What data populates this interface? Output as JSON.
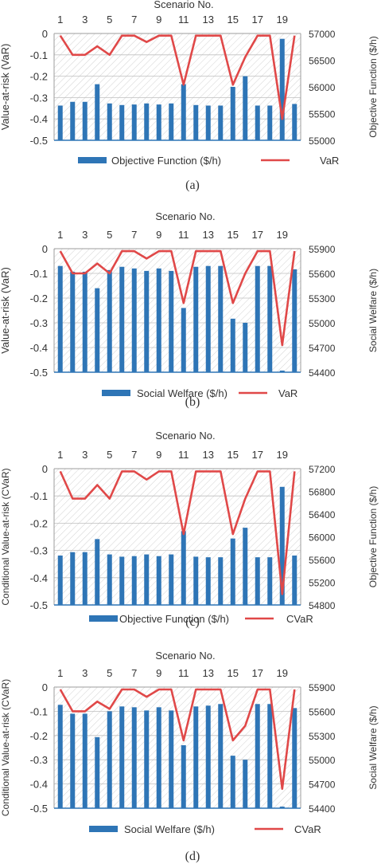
{
  "figure": {
    "captions": [
      "(a)",
      "(b)",
      "(c)",
      "(d)"
    ]
  },
  "chart_data": [
    {
      "type": "bar",
      "caption": "(a)",
      "xlabel": "Scenario No.",
      "x_tick_labels": [
        "1",
        "3",
        "5",
        "7",
        "9",
        "11",
        "13",
        "15",
        "17",
        "19"
      ],
      "categories": [
        "1",
        "2",
        "3",
        "4",
        "5",
        "6",
        "7",
        "8",
        "9",
        "10",
        "11",
        "12",
        "13",
        "14",
        "15",
        "16",
        "17",
        "18",
        "19",
        "20"
      ],
      "ylabel_left": "Value-at-risk (VaR)",
      "ylabel_right": "Objective Function ($/h)",
      "ylim_left": [
        -0.5,
        0
      ],
      "yticks_left": [
        "0",
        "-0.1",
        "-0.2",
        "-0.3",
        "-0.4",
        "-0.5"
      ],
      "ylim_right": [
        55000,
        57000
      ],
      "yticks_right": [
        "57000",
        "56500",
        "56000",
        "55500",
        "55000"
      ],
      "grid": true,
      "legend_position": "bottom",
      "series": [
        {
          "name": "Objective Function ($/h)",
          "kind": "bar",
          "axis": "right",
          "color": "#2e75b6",
          "values": [
            55650,
            55720,
            55720,
            56050,
            55690,
            55660,
            55670,
            55690,
            55670,
            55690,
            56050,
            55660,
            55650,
            55650,
            56000,
            56200,
            55650,
            55650,
            56900,
            55680
          ]
        },
        {
          "name": "VaR",
          "kind": "line",
          "axis": "left",
          "color": "#e04848",
          "values": [
            -0.01,
            -0.1,
            -0.1,
            -0.06,
            -0.1,
            -0.01,
            -0.01,
            -0.04,
            -0.01,
            -0.01,
            -0.24,
            -0.01,
            -0.01,
            -0.01,
            -0.24,
            -0.11,
            -0.01,
            -0.01,
            -0.4,
            -0.01
          ]
        }
      ]
    },
    {
      "type": "bar",
      "caption": "(b)",
      "xlabel": "Scenario No.",
      "x_tick_labels": [
        "1",
        "3",
        "5",
        "7",
        "9",
        "11",
        "13",
        "15",
        "17",
        "19"
      ],
      "categories": [
        "1",
        "2",
        "3",
        "4",
        "5",
        "6",
        "7",
        "8",
        "9",
        "10",
        "11",
        "12",
        "13",
        "14",
        "15",
        "16",
        "17",
        "18",
        "19",
        "20"
      ],
      "ylabel_left": "Value-at-risk (VaR)",
      "ylabel_right": "Social Welfare ($/h)",
      "ylim_left": [
        -0.5,
        0
      ],
      "yticks_left": [
        "0",
        "-0.1",
        "-0.2",
        "-0.3",
        "-0.4",
        "-0.5"
      ],
      "ylim_right": [
        54400,
        55900
      ],
      "yticks_right": [
        "55900",
        "55600",
        "55300",
        "55000",
        "54700",
        "54400"
      ],
      "grid": true,
      "legend_position": "bottom",
      "series": [
        {
          "name": "Social Welfare ($/h)",
          "kind": "bar",
          "axis": "right",
          "color": "#2e75b6",
          "values": [
            55690,
            55620,
            55620,
            55420,
            55640,
            55680,
            55660,
            55630,
            55660,
            55630,
            55180,
            55680,
            55690,
            55690,
            55050,
            55000,
            55690,
            55690,
            54420,
            55650
          ]
        },
        {
          "name": "VaR",
          "kind": "line",
          "axis": "left",
          "color": "#e04848",
          "values": [
            -0.01,
            -0.1,
            -0.1,
            -0.06,
            -0.1,
            -0.01,
            -0.01,
            -0.04,
            -0.01,
            -0.01,
            -0.22,
            -0.01,
            -0.01,
            -0.01,
            -0.22,
            -0.1,
            -0.01,
            -0.01,
            -0.39,
            -0.01
          ]
        }
      ]
    },
    {
      "type": "bar",
      "caption": "(c)",
      "xlabel": "Scenario No.",
      "x_tick_labels": [
        "1",
        "3",
        "5",
        "7",
        "9",
        "11",
        "13",
        "15",
        "17",
        "19"
      ],
      "categories": [
        "1",
        "2",
        "3",
        "4",
        "5",
        "6",
        "7",
        "8",
        "9",
        "10",
        "11",
        "12",
        "13",
        "14",
        "15",
        "16",
        "17",
        "18",
        "19",
        "20"
      ],
      "ylabel_left": "Conditional Value-at-risk (CVaR)",
      "ylabel_right": "Objective Function ($/h)",
      "ylim_left": [
        -0.5,
        0
      ],
      "yticks_left": [
        "0",
        "-0.1",
        "-0.2",
        "-0.3",
        "-0.4",
        "-0.5"
      ],
      "ylim_right": [
        54800,
        57200
      ],
      "yticks_right": [
        "57200",
        "56800",
        "56400",
        "56000",
        "55600",
        "55200",
        "54800"
      ],
      "grid": true,
      "legend_position": "bottom",
      "series": [
        {
          "name": "Objective Function ($/h)",
          "kind": "bar",
          "axis": "right",
          "color": "#2e75b6",
          "values": [
            55670,
            55730,
            55730,
            55960,
            55690,
            55650,
            55660,
            55690,
            55660,
            55690,
            56100,
            55650,
            55640,
            55640,
            55970,
            56160,
            55640,
            55640,
            56880,
            55670
          ]
        },
        {
          "name": "CVaR",
          "kind": "line",
          "axis": "left",
          "color": "#e04848",
          "values": [
            -0.01,
            -0.11,
            -0.11,
            -0.06,
            -0.11,
            -0.01,
            -0.01,
            -0.04,
            -0.01,
            -0.01,
            -0.24,
            -0.01,
            -0.01,
            -0.01,
            -0.24,
            -0.11,
            -0.01,
            -0.01,
            -0.46,
            -0.01
          ]
        }
      ]
    },
    {
      "type": "bar",
      "caption": "(d)",
      "xlabel": "Scenario No.",
      "x_tick_labels": [
        "1",
        "3",
        "5",
        "7",
        "9",
        "11",
        "13",
        "15",
        "17",
        "19"
      ],
      "categories": [
        "1",
        "2",
        "3",
        "4",
        "5",
        "6",
        "7",
        "8",
        "9",
        "10",
        "11",
        "12",
        "13",
        "14",
        "15",
        "16",
        "17",
        "18",
        "19",
        "20"
      ],
      "ylabel_left": "Conditional Value-at-risk (CVaR)",
      "ylabel_right": "Social Welfare ($/h)",
      "ylim_left": [
        -0.5,
        0
      ],
      "yticks_left": [
        "0",
        "-0.1",
        "-0.2",
        "-0.3",
        "-0.4",
        "-0.5"
      ],
      "ylim_right": [
        54400,
        55900
      ],
      "yticks_right": [
        "55900",
        "55600",
        "55300",
        "55000",
        "54700",
        "54400"
      ],
      "grid": true,
      "legend_position": "bottom",
      "series": [
        {
          "name": "Social Welfare ($/h)",
          "kind": "bar",
          "axis": "right",
          "color": "#2e75b6",
          "values": [
            55680,
            55570,
            55570,
            55280,
            55600,
            55660,
            55650,
            55610,
            55650,
            55610,
            55180,
            55660,
            55670,
            55690,
            55050,
            55000,
            55690,
            55690,
            54420,
            55640
          ]
        },
        {
          "name": "CVaR",
          "kind": "line",
          "axis": "left",
          "color": "#e04848",
          "values": [
            -0.01,
            -0.1,
            -0.1,
            -0.06,
            -0.09,
            -0.01,
            -0.01,
            -0.04,
            -0.01,
            -0.01,
            -0.22,
            -0.01,
            -0.01,
            -0.01,
            -0.22,
            -0.16,
            -0.01,
            -0.01,
            -0.42,
            -0.01
          ]
        }
      ]
    }
  ]
}
